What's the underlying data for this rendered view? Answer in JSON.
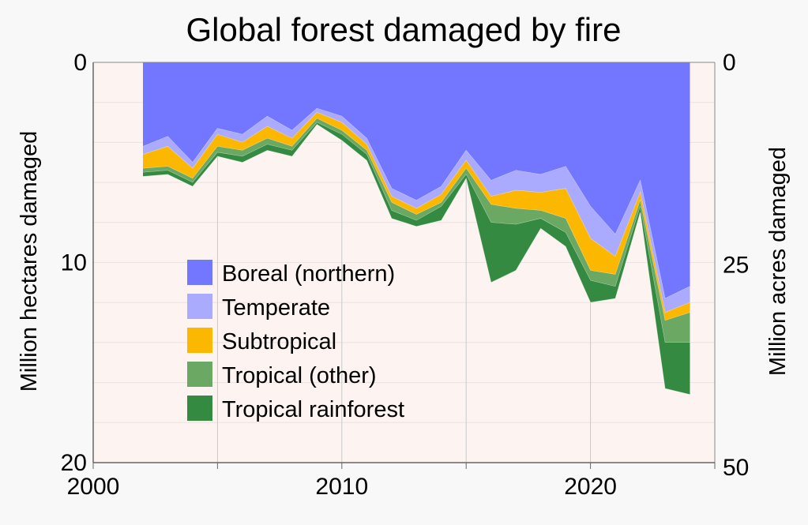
{
  "chart_data": {
    "type": "area",
    "title": "Global forest damaged by fire",
    "ylabel_left": "Million hectares damaged",
    "ylabel_right": "Million acres damaged",
    "x_ticks": [
      "2000",
      "2010",
      "2020"
    ],
    "x_tick_values": [
      2000,
      2010,
      2020
    ],
    "y_left_ticks": [
      "0",
      "10",
      "20"
    ],
    "y_left_tick_values": [
      0,
      10,
      20
    ],
    "y_right_ticks": [
      "0",
      "25",
      "50"
    ],
    "y_right_tick_values": [
      0,
      25,
      50
    ],
    "xlim": [
      2000,
      2025
    ],
    "ylim": [
      0,
      20
    ],
    "y_inverted": true,
    "plot_background": "#fdf3f0",
    "grid": "vertical and horizontal",
    "legend_position": "lower-left inside plot",
    "x": [
      2002,
      2003,
      2004,
      2005,
      2006,
      2007,
      2008,
      2009,
      2010,
      2011,
      2012,
      2013,
      2014,
      2015,
      2016,
      2017,
      2018,
      2019,
      2020,
      2021,
      2022,
      2023,
      2024
    ],
    "series": [
      {
        "name": "Boreal (northern)",
        "color": "#7377ff",
        "values": [
          4.2,
          3.7,
          5.0,
          3.3,
          3.6,
          2.7,
          3.4,
          2.3,
          2.7,
          3.8,
          6.3,
          6.9,
          6.2,
          4.4,
          5.9,
          5.4,
          5.6,
          5.2,
          7.2,
          8.6,
          5.9,
          11.8,
          11.2
        ]
      },
      {
        "name": "Temperate",
        "color": "#aaabff",
        "values": [
          0.4,
          0.5,
          0.3,
          0.3,
          0.4,
          0.5,
          0.4,
          0.2,
          0.3,
          0.3,
          0.4,
          0.4,
          0.4,
          0.5,
          0.8,
          1.0,
          0.9,
          1.1,
          1.6,
          1.1,
          0.6,
          0.7,
          0.8
        ]
      },
      {
        "name": "Subtropical",
        "color": "#fcb700",
        "values": [
          0.7,
          1.0,
          0.5,
          0.6,
          0.4,
          0.6,
          0.4,
          0.3,
          0.4,
          0.3,
          0.3,
          0.3,
          0.4,
          0.4,
          0.4,
          0.9,
          0.9,
          1.5,
          1.6,
          0.9,
          0.4,
          0.4,
          0.5
        ]
      },
      {
        "name": "Tropical (other)",
        "color": "#6aa863",
        "values": [
          0.2,
          0.2,
          0.2,
          0.3,
          0.3,
          0.3,
          0.2,
          0.2,
          0.2,
          0.2,
          0.4,
          0.3,
          0.2,
          0.3,
          0.9,
          0.8,
          0.4,
          0.7,
          0.5,
          0.6,
          0.3,
          1.1,
          1.5
        ]
      },
      {
        "name": "Tropical rainforest",
        "color": "#358a41",
        "values": [
          0.2,
          0.2,
          0.2,
          0.2,
          0.3,
          0.3,
          0.3,
          0.1,
          0.3,
          0.3,
          0.4,
          0.3,
          0.7,
          0.2,
          3.0,
          2.3,
          0.5,
          0.7,
          1.1,
          0.6,
          0.3,
          2.3,
          2.6
        ]
      }
    ]
  }
}
